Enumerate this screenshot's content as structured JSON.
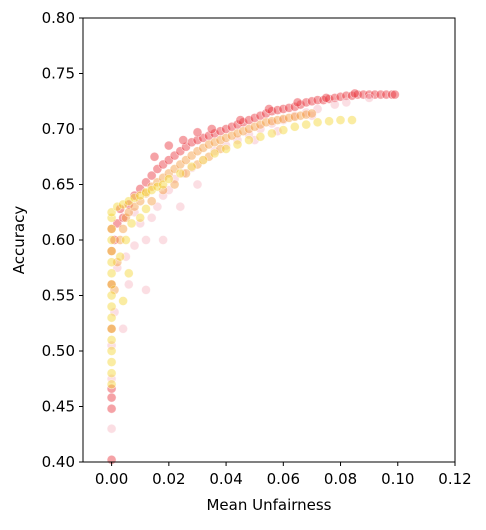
{
  "chart_data": {
    "type": "scatter",
    "title": "",
    "xlabel": "Mean Unfairness",
    "ylabel": "Accuracy",
    "xlim": [
      -0.01,
      0.12
    ],
    "ylim": [
      0.4,
      0.8
    ],
    "x_ticks": [
      0.0,
      0.02,
      0.04,
      0.06,
      0.08,
      0.1,
      0.12
    ],
    "x_tick_labels": [
      "0.00",
      "0.02",
      "0.04",
      "0.06",
      "0.08",
      "0.10",
      "0.12"
    ],
    "y_ticks": [
      0.4,
      0.45,
      0.5,
      0.55,
      0.6,
      0.65,
      0.7,
      0.75,
      0.8
    ],
    "y_tick_labels": [
      "0.40",
      "0.45",
      "0.50",
      "0.55",
      "0.60",
      "0.65",
      "0.70",
      "0.75",
      "0.80"
    ],
    "grid": false,
    "legend": "none",
    "colors": {
      "red": "#e8303a",
      "pink": "#f4a0b0",
      "orange": "#f59a3c",
      "yellow": "#f5d530"
    },
    "series": [
      {
        "color": "red",
        "points": [
          [
            0.0,
            0.402
          ],
          [
            0.0,
            0.448
          ],
          [
            0.0,
            0.458
          ],
          [
            0.0,
            0.466
          ],
          [
            0.0,
            0.52
          ],
          [
            0.0,
            0.56
          ],
          [
            0.0,
            0.59
          ],
          [
            0.0,
            0.61
          ],
          [
            0.001,
            0.6
          ],
          [
            0.002,
            0.615
          ],
          [
            0.003,
            0.628
          ],
          [
            0.004,
            0.62
          ],
          [
            0.006,
            0.632
          ],
          [
            0.008,
            0.64
          ],
          [
            0.01,
            0.646
          ],
          [
            0.012,
            0.652
          ],
          [
            0.014,
            0.658
          ],
          [
            0.016,
            0.664
          ],
          [
            0.018,
            0.668
          ],
          [
            0.02,
            0.672
          ],
          [
            0.022,
            0.676
          ],
          [
            0.024,
            0.68
          ],
          [
            0.026,
            0.684
          ],
          [
            0.028,
            0.688
          ],
          [
            0.03,
            0.69
          ],
          [
            0.032,
            0.692
          ],
          [
            0.034,
            0.694
          ],
          [
            0.036,
            0.696
          ],
          [
            0.038,
            0.698
          ],
          [
            0.04,
            0.7
          ],
          [
            0.042,
            0.702
          ],
          [
            0.044,
            0.704
          ],
          [
            0.046,
            0.706
          ],
          [
            0.048,
            0.708
          ],
          [
            0.05,
            0.71
          ],
          [
            0.052,
            0.712
          ],
          [
            0.054,
            0.714
          ],
          [
            0.056,
            0.716
          ],
          [
            0.058,
            0.717
          ],
          [
            0.06,
            0.718
          ],
          [
            0.062,
            0.719
          ],
          [
            0.064,
            0.72
          ],
          [
            0.066,
            0.722
          ],
          [
            0.068,
            0.724
          ],
          [
            0.07,
            0.725
          ],
          [
            0.072,
            0.726
          ],
          [
            0.074,
            0.726
          ],
          [
            0.076,
            0.727
          ],
          [
            0.078,
            0.728
          ],
          [
            0.08,
            0.729
          ],
          [
            0.082,
            0.73
          ],
          [
            0.084,
            0.73
          ],
          [
            0.086,
            0.731
          ],
          [
            0.088,
            0.731
          ],
          [
            0.09,
            0.731
          ],
          [
            0.092,
            0.731
          ],
          [
            0.094,
            0.731
          ],
          [
            0.096,
            0.731
          ],
          [
            0.098,
            0.731
          ],
          [
            0.099,
            0.731
          ],
          [
            0.015,
            0.675
          ],
          [
            0.02,
            0.685
          ],
          [
            0.025,
            0.69
          ],
          [
            0.03,
            0.697
          ],
          [
            0.035,
            0.7
          ],
          [
            0.045,
            0.708
          ],
          [
            0.055,
            0.718
          ],
          [
            0.065,
            0.724
          ],
          [
            0.075,
            0.728
          ],
          [
            0.085,
            0.732
          ]
        ]
      },
      {
        "color": "pink",
        "points": [
          [
            0.0,
            0.43
          ],
          [
            0.0,
            0.475
          ],
          [
            0.0,
            0.505
          ],
          [
            0.001,
            0.535
          ],
          [
            0.002,
            0.575
          ],
          [
            0.004,
            0.52
          ],
          [
            0.005,
            0.585
          ],
          [
            0.006,
            0.56
          ],
          [
            0.008,
            0.595
          ],
          [
            0.01,
            0.615
          ],
          [
            0.012,
            0.6
          ],
          [
            0.014,
            0.62
          ],
          [
            0.016,
            0.63
          ],
          [
            0.018,
            0.64
          ],
          [
            0.02,
            0.645
          ],
          [
            0.022,
            0.655
          ],
          [
            0.025,
            0.66
          ],
          [
            0.028,
            0.665
          ],
          [
            0.032,
            0.672
          ],
          [
            0.036,
            0.68
          ],
          [
            0.04,
            0.685
          ],
          [
            0.044,
            0.69
          ],
          [
            0.048,
            0.695
          ],
          [
            0.052,
            0.7
          ],
          [
            0.056,
            0.705
          ],
          [
            0.06,
            0.708
          ],
          [
            0.064,
            0.712
          ],
          [
            0.068,
            0.715
          ],
          [
            0.072,
            0.718
          ],
          [
            0.078,
            0.722
          ],
          [
            0.012,
            0.555
          ],
          [
            0.018,
            0.6
          ],
          [
            0.024,
            0.63
          ],
          [
            0.03,
            0.65
          ],
          [
            0.008,
            0.625
          ],
          [
            0.05,
            0.69
          ],
          [
            0.058,
            0.698
          ],
          [
            0.07,
            0.712
          ],
          [
            0.082,
            0.724
          ],
          [
            0.09,
            0.728
          ]
        ]
      },
      {
        "color": "orange",
        "points": [
          [
            0.001,
            0.555
          ],
          [
            0.002,
            0.58
          ],
          [
            0.003,
            0.6
          ],
          [
            0.004,
            0.61
          ],
          [
            0.005,
            0.62
          ],
          [
            0.006,
            0.625
          ],
          [
            0.008,
            0.63
          ],
          [
            0.01,
            0.635
          ],
          [
            0.012,
            0.642
          ],
          [
            0.014,
            0.648
          ],
          [
            0.016,
            0.652
          ],
          [
            0.018,
            0.656
          ],
          [
            0.02,
            0.66
          ],
          [
            0.022,
            0.664
          ],
          [
            0.024,
            0.668
          ],
          [
            0.026,
            0.672
          ],
          [
            0.028,
            0.676
          ],
          [
            0.03,
            0.68
          ],
          [
            0.032,
            0.683
          ],
          [
            0.034,
            0.686
          ],
          [
            0.036,
            0.688
          ],
          [
            0.038,
            0.69
          ],
          [
            0.04,
            0.692
          ],
          [
            0.042,
            0.694
          ],
          [
            0.044,
            0.696
          ],
          [
            0.046,
            0.698
          ],
          [
            0.048,
            0.7
          ],
          [
            0.05,
            0.702
          ],
          [
            0.052,
            0.704
          ],
          [
            0.054,
            0.706
          ],
          [
            0.056,
            0.707
          ],
          [
            0.058,
            0.708
          ],
          [
            0.06,
            0.709
          ],
          [
            0.062,
            0.71
          ],
          [
            0.064,
            0.711
          ],
          [
            0.066,
            0.712
          ],
          [
            0.068,
            0.713
          ],
          [
            0.07,
            0.714
          ],
          [
            0.014,
            0.635
          ],
          [
            0.018,
            0.645
          ],
          [
            0.022,
            0.65
          ],
          [
            0.026,
            0.66
          ],
          [
            0.03,
            0.668
          ],
          [
            0.034,
            0.675
          ],
          [
            0.038,
            0.682
          ]
        ]
      },
      {
        "color": "yellow",
        "points": [
          [
            0.0,
            0.47
          ],
          [
            0.0,
            0.48
          ],
          [
            0.0,
            0.49
          ],
          [
            0.0,
            0.5
          ],
          [
            0.0,
            0.51
          ],
          [
            0.0,
            0.52
          ],
          [
            0.0,
            0.53
          ],
          [
            0.0,
            0.54
          ],
          [
            0.0,
            0.55
          ],
          [
            0.0,
            0.56
          ],
          [
            0.0,
            0.57
          ],
          [
            0.0,
            0.58
          ],
          [
            0.0,
            0.59
          ],
          [
            0.0,
            0.6
          ],
          [
            0.0,
            0.61
          ],
          [
            0.0,
            0.62
          ],
          [
            0.0,
            0.625
          ],
          [
            0.002,
            0.63
          ],
          [
            0.004,
            0.632
          ],
          [
            0.006,
            0.635
          ],
          [
            0.008,
            0.638
          ],
          [
            0.01,
            0.64
          ],
          [
            0.012,
            0.643
          ],
          [
            0.014,
            0.645
          ],
          [
            0.016,
            0.648
          ],
          [
            0.018,
            0.65
          ],
          [
            0.02,
            0.655
          ],
          [
            0.024,
            0.66
          ],
          [
            0.028,
            0.666
          ],
          [
            0.032,
            0.672
          ],
          [
            0.036,
            0.678
          ],
          [
            0.04,
            0.682
          ],
          [
            0.044,
            0.686
          ],
          [
            0.048,
            0.69
          ],
          [
            0.052,
            0.693
          ],
          [
            0.056,
            0.696
          ],
          [
            0.06,
            0.699
          ],
          [
            0.064,
            0.702
          ],
          [
            0.068,
            0.704
          ],
          [
            0.072,
            0.706
          ],
          [
            0.076,
            0.707
          ],
          [
            0.08,
            0.708
          ],
          [
            0.084,
            0.708
          ],
          [
            0.003,
            0.585
          ],
          [
            0.005,
            0.6
          ],
          [
            0.007,
            0.615
          ],
          [
            0.004,
            0.545
          ],
          [
            0.006,
            0.57
          ],
          [
            0.01,
            0.62
          ],
          [
            0.012,
            0.628
          ]
        ]
      }
    ]
  }
}
